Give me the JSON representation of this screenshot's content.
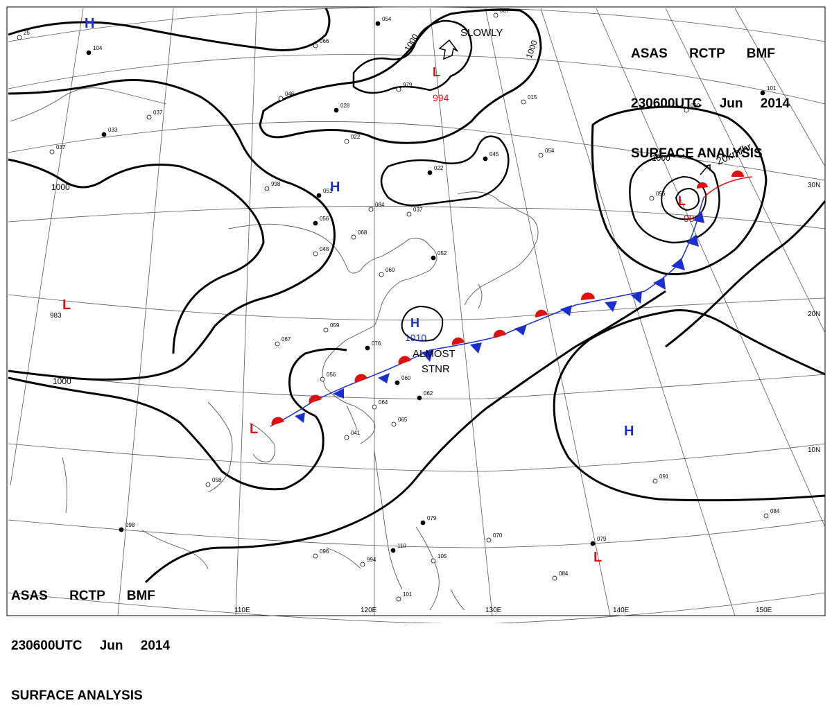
{
  "title": {
    "line1": "ASAS RCTP BMF",
    "line2": "230600UTC Jun 2014",
    "line3": "SURFACE ANALYSIS"
  },
  "longitude_labels": [
    "110E",
    "120E",
    "130E",
    "140E",
    "150E"
  ],
  "latitude_labels": [
    "30N",
    "20N",
    "10N"
  ],
  "isobar_labels": [
    "1000",
    "1000",
    "1000",
    "1000",
    "1000"
  ],
  "pressure_centers": [
    {
      "type": "L",
      "value": "994"
    },
    {
      "type": "L",
      "value": "98"
    },
    {
      "type": "H",
      "value": "1010"
    },
    {
      "type": "H",
      "value": ""
    },
    {
      "type": "H",
      "value": ""
    },
    {
      "type": "H",
      "value": ""
    },
    {
      "type": "L",
      "value": "983"
    },
    {
      "type": "L",
      "value": ""
    },
    {
      "type": "L",
      "value": ""
    }
  ],
  "annotations": {
    "slowly": "SLOWLY",
    "speed": "20km/hr",
    "almost": "ALMOST",
    "stnr": "STNR"
  },
  "colors": {
    "high": "#1a2fd0",
    "low": "#e01010",
    "isobar": "#000000",
    "grid": "#555555",
    "coast": "#555555"
  },
  "station_labels": [
    "054",
    "25",
    "007",
    "104",
    "066",
    "046",
    "028",
    "979",
    "037",
    "033",
    "037",
    "998",
    "051",
    "084",
    "037",
    "056",
    "068",
    "048",
    "052",
    "060",
    "059",
    "076",
    "067",
    "056",
    "060",
    "064",
    "065",
    "062",
    "041",
    "058",
    "098",
    "096",
    "994",
    "110",
    "101",
    "105",
    "079",
    "070",
    "084",
    "079",
    "091",
    "084",
    "101",
    "060",
    "056",
    "045",
    "015",
    "054",
    "022",
    "022"
  ]
}
